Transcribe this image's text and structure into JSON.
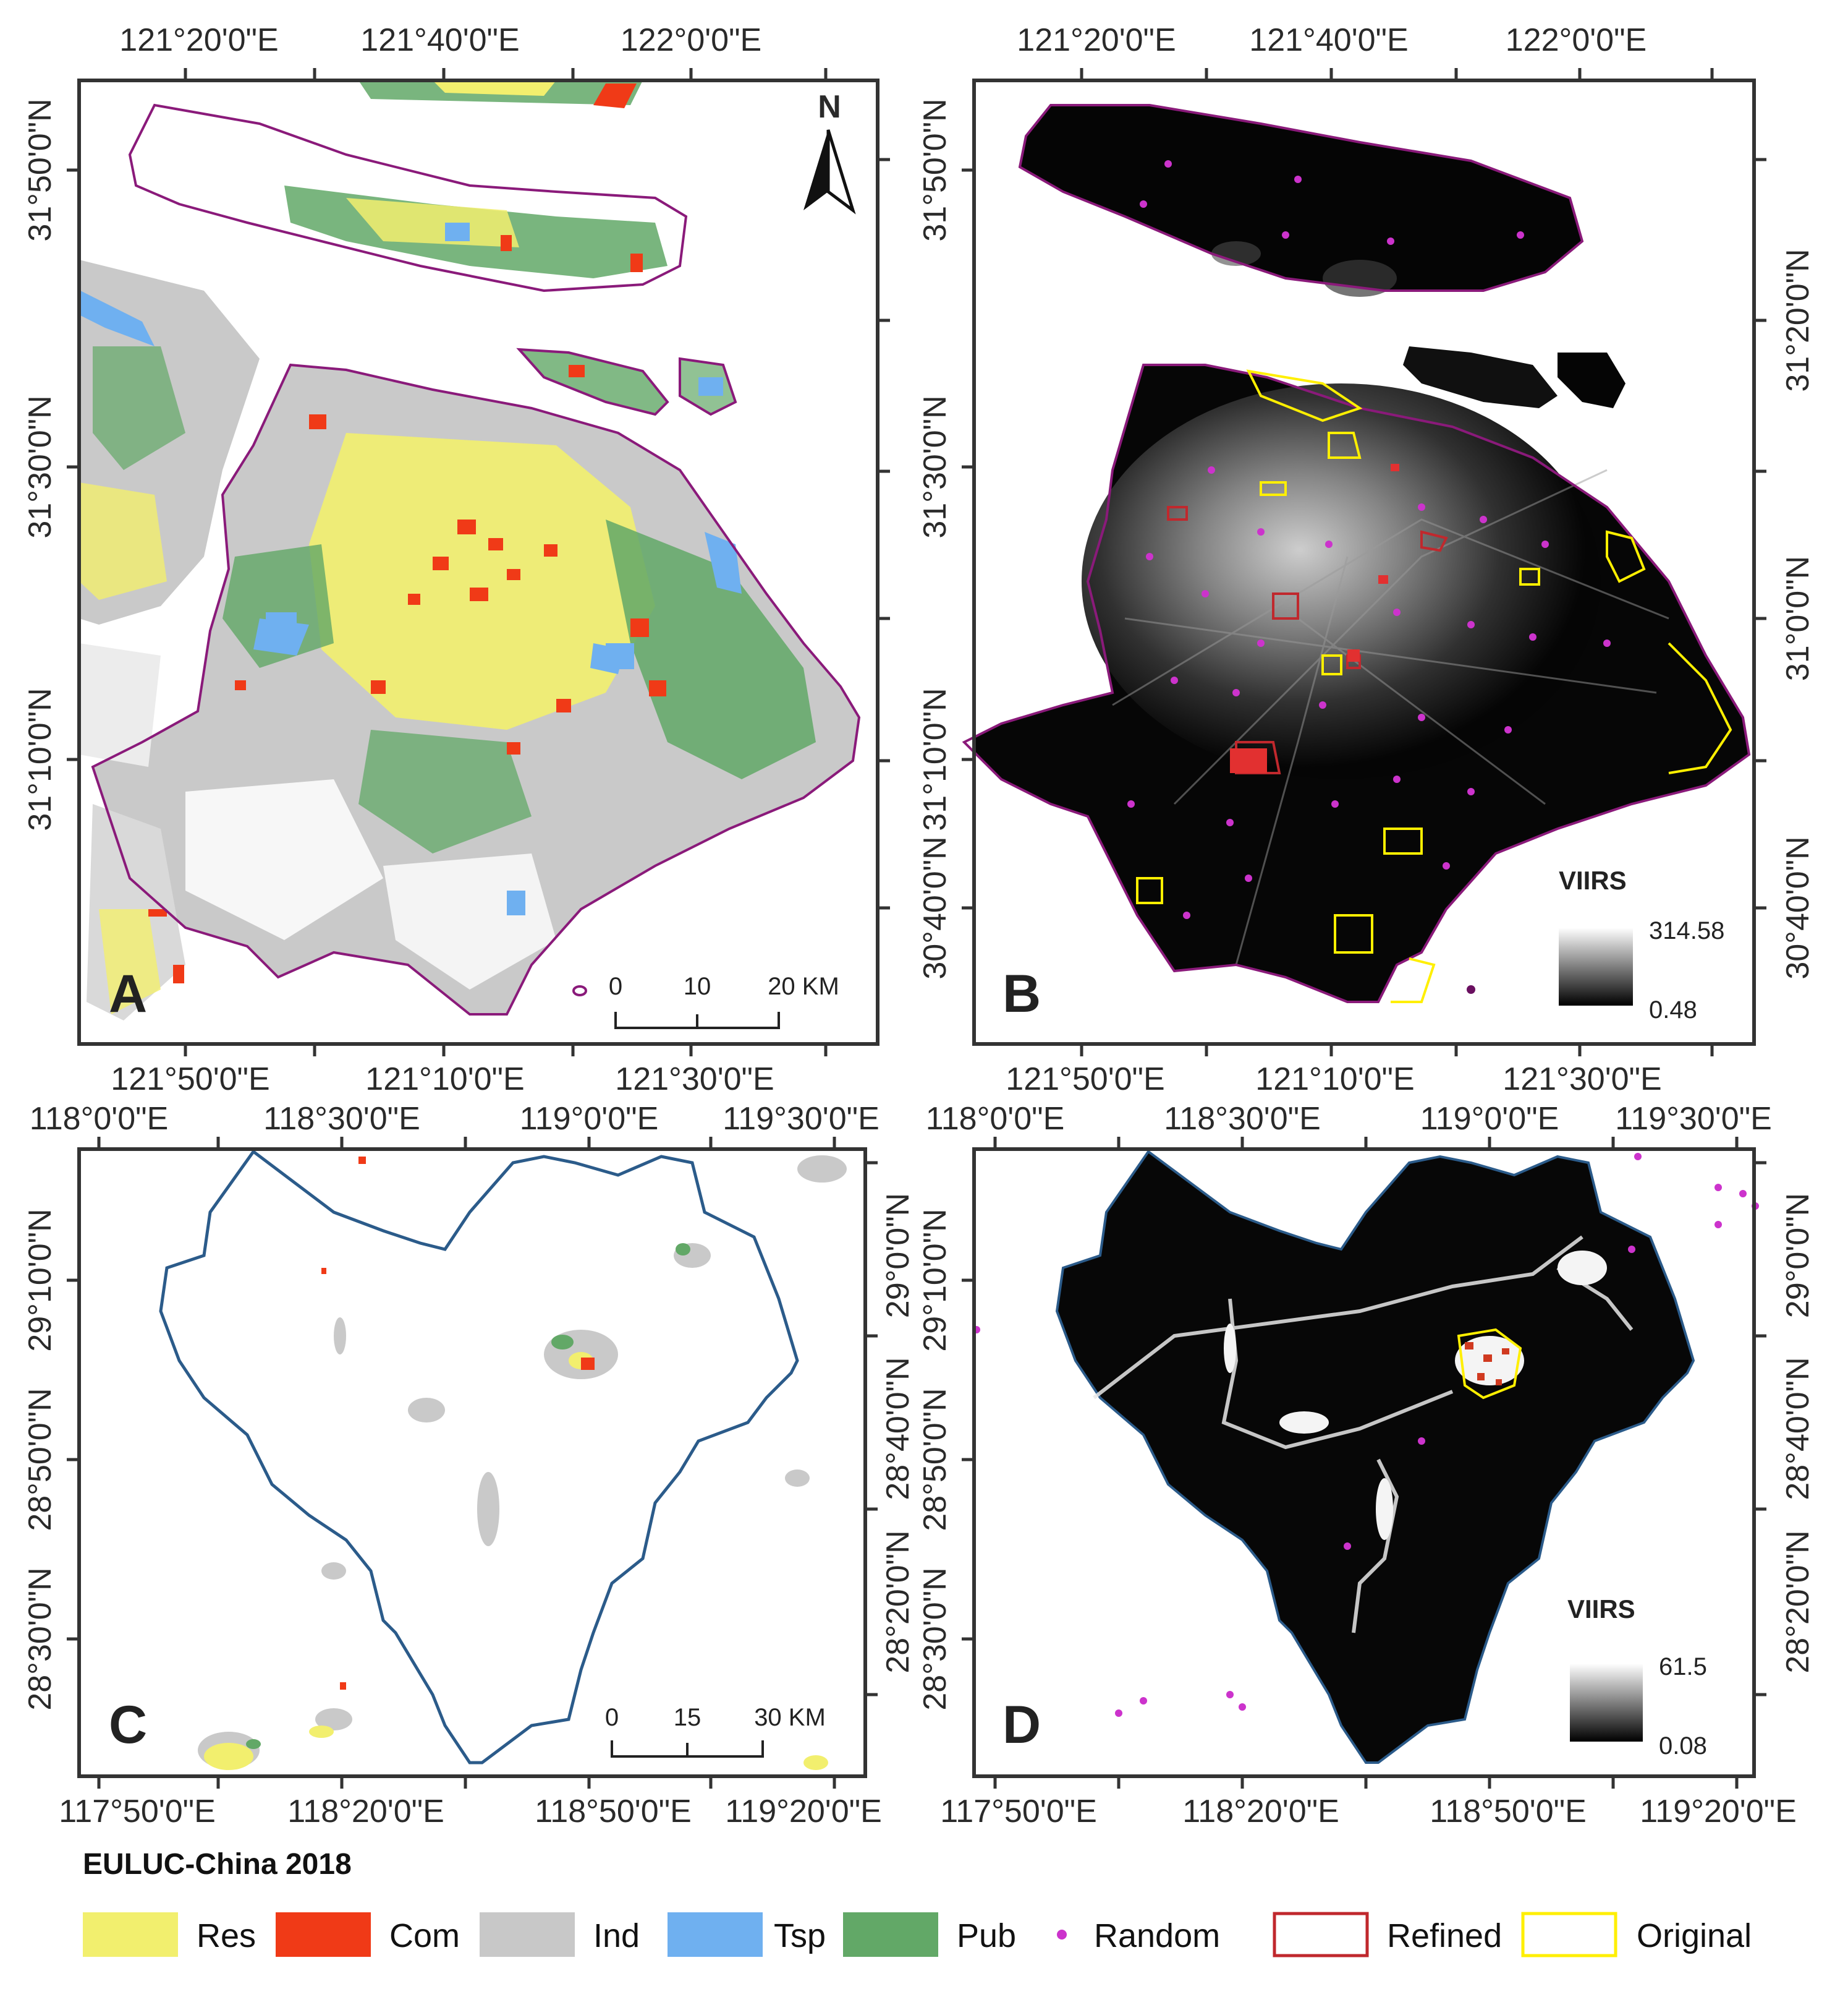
{
  "panels": {
    "A": {
      "letter": "A",
      "top_ticks": [
        "121°20'0\"E",
        "121°40'0\"E",
        "122°0'0\"E"
      ],
      "bottom_ticks": [
        "121°50'0\"E",
        "121°10'0\"E",
        "121°30'0\"E"
      ],
      "left_ticks": [
        "31°50'0\"N",
        "31°30'0\"N",
        "31°10'0\"N"
      ],
      "right_ticks": [],
      "scalebar": {
        "labels": [
          "0",
          "10",
          "20 KM"
        ]
      },
      "north": "N"
    },
    "B": {
      "letter": "B",
      "top_ticks": [
        "121°20'0\"E",
        "121°40'0\"E",
        "122°0'0\"E"
      ],
      "bottom_ticks": [
        "121°50'0\"E",
        "121°10'0\"E",
        "121°30'0\"E"
      ],
      "left_ticks": [
        "31°50'0\"N",
        "31°30'0\"N",
        "31°10'0\"N",
        "30°40'0\"N"
      ],
      "right_ticks": [
        "31°20'0\"N",
        "31°0'0\"N",
        "30°40'0\"N"
      ],
      "viirs": {
        "title": "VIIRS",
        "max": "314.58",
        "min": "0.48"
      }
    },
    "C": {
      "letter": "C",
      "top_ticks": [
        "118°0'0\"E",
        "118°30'0\"E",
        "119°0'0\"E",
        "119°30'0\"E"
      ],
      "bottom_ticks": [
        "117°50'0\"E",
        "118°20'0\"E",
        "118°50'0\"E",
        "119°20'0\"E"
      ],
      "left_ticks": [
        "29°10'0\"N",
        "28°50'0\"N",
        "28°30'0\"N"
      ],
      "right_ticks": [
        "29°0'0\"N",
        "28°40'0\"N",
        "28°20'0\"N"
      ],
      "scalebar": {
        "labels": [
          "0",
          "15",
          "30 KM"
        ]
      }
    },
    "D": {
      "letter": "D",
      "top_ticks": [
        "118°0'0\"E",
        "118°30'0\"E",
        "119°0'0\"E",
        "119°30'0\"E"
      ],
      "bottom_ticks": [
        "117°50'0\"E",
        "118°20'0\"E",
        "118°50'0\"E",
        "119°20'0\"E"
      ],
      "left_ticks": [
        "29°10'0\"N",
        "28°50'0\"N",
        "28°30'0\"N"
      ],
      "right_ticks": [
        "29°0'0\"N",
        "28°40'0\"N",
        "28°20'0\"N"
      ],
      "viirs": {
        "title": "VIIRS",
        "max": "61.5",
        "min": "0.08"
      }
    }
  },
  "legend": {
    "title": "EULUC-China 2018",
    "items": [
      {
        "label": "Res",
        "color": "#f2ef6e"
      },
      {
        "label": "Com",
        "color": "#f03a17"
      },
      {
        "label": "Ind",
        "color": "#c8c8c8"
      },
      {
        "label": "Tsp",
        "color": "#6fb0f0"
      },
      {
        "label": "Pub",
        "color": "#62a867"
      },
      {
        "label": "Random",
        "color": "#cc33cc"
      },
      {
        "label": "Refined",
        "color": "#c0282d"
      },
      {
        "label": "Original",
        "color": "#ffef00"
      }
    ]
  },
  "colors": {
    "res": "#f2ef6e",
    "com": "#f03a17",
    "ind": "#c8c8c8",
    "tsp": "#6fb0f0",
    "pub": "#62a867",
    "boundary_shanghai": "#8a1a7a",
    "boundary_lishui": "#2b5b8a",
    "random": "#cc33cc",
    "refined": "#c0282d",
    "original": "#ffef00"
  }
}
